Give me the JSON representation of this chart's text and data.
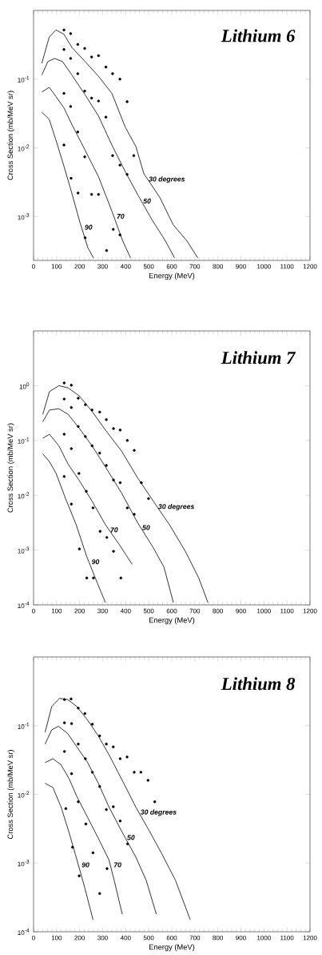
{
  "chart_data": [
    {
      "type": "scatter",
      "title": "Lithium 6",
      "xlabel": "Energy (MeV)",
      "ylabel": "Cross Section (mb/MeV sr)",
      "log": true,
      "legend": false,
      "xlim": [
        0,
        1200
      ],
      "xticks": [
        0,
        100,
        200,
        300,
        400,
        500,
        600,
        700,
        800,
        900,
        1000,
        1100,
        1200
      ],
      "ylim": [
        0.00023,
        1
      ],
      "yticks": [
        {
          "value": 0.1,
          "label": "10$^{-1}$"
        },
        {
          "value": 0.01,
          "label": "10$^{-2}$"
        },
        {
          "value": 0.001,
          "label": "10$^{-3}$"
        }
      ],
      "series": [
        {
          "name": "30 degrees",
          "type": "line",
          "color": "#000000",
          "x": [
            36,
            68,
            97,
            132,
            166,
            224,
            282,
            340,
            398,
            444,
            479,
            548,
            606,
            664,
            713
          ],
          "values": [
            0.17,
            0.41,
            0.52,
            0.45,
            0.29,
            0.18,
            0.11,
            0.062,
            0.02,
            0.0105,
            0.0042,
            0.0019,
            0.00076,
            0.00045,
            0.00025
          ]
        },
        {
          "name": "50",
          "type": "line",
          "color": "#000000",
          "x": [
            36,
            62,
            91,
            126,
            166,
            224,
            282,
            340,
            398,
            455,
            513,
            571,
            612
          ],
          "values": [
            0.115,
            0.18,
            0.2,
            0.18,
            0.115,
            0.059,
            0.029,
            0.011,
            0.0045,
            0.002,
            0.00091,
            0.00045,
            0.00025
          ]
        },
        {
          "name": "70",
          "type": "line",
          "color": "#000000",
          "x": [
            36,
            68,
            97,
            132,
            166,
            224,
            282,
            340,
            386,
            421
          ],
          "values": [
            0.065,
            0.076,
            0.056,
            0.038,
            0.022,
            0.0092,
            0.0038,
            0.0012,
            0.00045,
            0.00025
          ]
        },
        {
          "name": "90",
          "type": "line",
          "color": "#000000",
          "x": [
            36,
            68,
            97,
            132,
            166,
            201,
            236,
            260
          ],
          "values": [
            0.033,
            0.026,
            0.013,
            0.0054,
            0.0022,
            0.00083,
            0.00035,
            0.00025
          ]
        },
        {
          "marker": "circle",
          "color": "#000000",
          "x": [
            132,
            161,
            192,
            222,
            252,
            282,
            314,
            343,
            375,
            406
          ],
          "values": [
            0.52,
            0.46,
            0.32,
            0.28,
            0.21,
            0.22,
            0.15,
            0.12,
            0.1,
            0.047
          ]
        },
        {
          "marker": "circle",
          "color": "#000000",
          "x": [
            132,
            161,
            192,
            222,
            252,
            282,
            314,
            343,
            375,
            406,
            435
          ],
          "values": [
            0.27,
            0.2,
            0.12,
            0.067,
            0.053,
            0.048,
            0.028,
            0.0077,
            0.0056,
            0.0041,
            0.0077
          ]
        },
        {
          "marker": "circle",
          "color": "#000000",
          "x": [
            132,
            161,
            192,
            222,
            252,
            282,
            317,
            346,
            375
          ],
          "values": [
            0.062,
            0.04,
            0.017,
            0.0074,
            0.0021,
            0.0021,
            0.00032,
            0.00065,
            0.00054
          ]
        },
        {
          "marker": "circle",
          "color": "#000000",
          "x": [
            132,
            163,
            193,
            224
          ],
          "values": [
            0.011,
            0.0036,
            0.0022,
            0.00049
          ]
        }
      ]
    },
    {
      "type": "scatter",
      "title": "Lithium 7",
      "xlabel": "Energy (MeV)",
      "ylabel": "Cross Section (mb/MeV sr)",
      "log": true,
      "legend": false,
      "xlim": [
        0,
        1200
      ],
      "xticks": [
        0,
        100,
        200,
        300,
        400,
        500,
        600,
        700,
        800,
        900,
        1000,
        1100,
        1200
      ],
      "ylim": [
        0.0001,
        10
      ],
      "yticks": [
        {
          "value": 1,
          "label": "10$^{0}$"
        },
        {
          "value": 0.1,
          "label": "10$^{-1}$"
        },
        {
          "value": 0.01,
          "label": "10$^{-2}$"
        },
        {
          "value": 0.001,
          "label": "10$^{-3}$"
        },
        {
          "value": 0.0001,
          "label": "10$^{-4}$"
        }
      ],
      "series": [
        {
          "name": "30 degrees",
          "type": "line",
          "color": "#000000",
          "x": [
            40,
            69,
            110,
            150,
            197,
            254,
            312,
            382,
            451,
            520,
            590,
            659,
            717,
            757
          ],
          "values": [
            0.3,
            0.78,
            1.0,
            0.91,
            0.66,
            0.34,
            0.155,
            0.064,
            0.021,
            0.0078,
            0.0029,
            0.00095,
            0.00031,
            0.00011
          ]
        },
        {
          "name": "50",
          "type": "line",
          "color": "#000000",
          "x": [
            40,
            69,
            110,
            150,
            197,
            254,
            312,
            382,
            451,
            520,
            566,
            607
          ],
          "values": [
            0.22,
            0.36,
            0.38,
            0.3,
            0.17,
            0.08,
            0.033,
            0.011,
            0.0032,
            0.0011,
            0.00049,
            0.00011
          ]
        },
        {
          "name": "70",
          "type": "line",
          "color": "#000000",
          "x": [
            40,
            69,
            110,
            150,
            197,
            254,
            312,
            370,
            428
          ],
          "values": [
            0.11,
            0.13,
            0.08,
            0.037,
            0.019,
            0.0078,
            0.0029,
            0.0013,
            0.00055
          ]
        },
        {
          "name": "90",
          "type": "line",
          "color": "#000000",
          "x": [
            40,
            69,
            98,
            139,
            185,
            231,
            277,
            312
          ],
          "values": [
            0.057,
            0.041,
            0.025,
            0.0087,
            0.0029,
            0.00076,
            0.00025,
            0.00011
          ]
        },
        {
          "marker": "circle",
          "color": "#000000",
          "x": [
            133,
            164,
            194,
            225,
            254,
            287,
            316,
            347,
            376,
            407,
            437,
            468,
            499
          ],
          "values": [
            1.12,
            1.02,
            0.59,
            0.45,
            0.36,
            0.33,
            0.24,
            0.165,
            0.155,
            0.1,
            0.066,
            0.017,
            0.0087
          ]
        },
        {
          "marker": "circle",
          "color": "#000000",
          "x": [
            133,
            164,
            194,
            225,
            254,
            287,
            316,
            347,
            376,
            407,
            437
          ],
          "values": [
            0.57,
            0.4,
            0.18,
            0.118,
            0.08,
            0.059,
            0.035,
            0.019,
            0.017,
            0.0059,
            0.0045
          ]
        },
        {
          "marker": "circle",
          "color": "#000000",
          "x": [
            133,
            164,
            197,
            229,
            258,
            289,
            318,
            347,
            379
          ],
          "values": [
            0.13,
            0.071,
            0.025,
            0.0118,
            0.0059,
            0.0022,
            0.0017,
            0.00095,
            0.00031
          ]
        },
        {
          "marker": "circle",
          "color": "#000000",
          "x": [
            133,
            164,
            199,
            231,
            260
          ],
          "values": [
            0.022,
            0.0069,
            0.00105,
            0.00031,
            0.00031
          ]
        }
      ]
    },
    {
      "type": "scatter",
      "title": "Lithium 8",
      "xlabel": "Energy (MeV)",
      "ylabel": "Cross Section (mb/MeV sr)",
      "log": true,
      "legend": false,
      "xlim": [
        0,
        1200
      ],
      "xticks": [
        0,
        100,
        200,
        300,
        400,
        500,
        600,
        700,
        800,
        900,
        1000,
        1100,
        1200
      ],
      "ylim": [
        0.0001,
        1
      ],
      "yticks": [
        {
          "value": 0.1,
          "label": "10$^{-1}$"
        },
        {
          "value": 0.01,
          "label": "10$^{-2}$"
        },
        {
          "value": 0.001,
          "label": "10$^{-3}$"
        },
        {
          "value": 0.0001,
          "label": "10$^{-4}$"
        }
      ],
      "series": [
        {
          "name": "30 degrees",
          "type": "line",
          "color": "#000000",
          "x": [
            50,
            79,
            113,
            148,
            188,
            235,
            281,
            327,
            385,
            443,
            501,
            558,
            616,
            680
          ],
          "values": [
            0.08,
            0.19,
            0.25,
            0.24,
            0.19,
            0.12,
            0.071,
            0.038,
            0.016,
            0.0066,
            0.003,
            0.00134,
            0.00056,
            0.00015
          ]
        },
        {
          "name": "50",
          "type": "line",
          "color": "#000000",
          "x": [
            50,
            79,
            108,
            148,
            188,
            235,
            281,
            327,
            385,
            443,
            489,
            533
          ],
          "values": [
            0.054,
            0.087,
            0.098,
            0.077,
            0.049,
            0.029,
            0.0145,
            0.0066,
            0.0028,
            0.00124,
            0.00056,
            0.00018
          ]
        },
        {
          "name": "70",
          "type": "line",
          "color": "#000000",
          "x": [
            50,
            84,
            119,
            154,
            188,
            235,
            281,
            327,
            350,
            385
          ],
          "values": [
            0.029,
            0.033,
            0.027,
            0.017,
            0.0093,
            0.0046,
            0.0023,
            0.00112,
            0.00056,
            0.00018
          ]
        },
        {
          "name": "90",
          "type": "line",
          "color": "#000000",
          "x": [
            50,
            84,
            119,
            154,
            188,
            223,
            258
          ],
          "values": [
            0.0145,
            0.0126,
            0.0066,
            0.0028,
            0.00112,
            0.00043,
            0.00015
          ]
        },
        {
          "marker": "circle",
          "color": "#000000",
          "x": [
            134,
            163,
            194,
            223,
            255,
            287,
            316,
            346,
            376,
            406,
            437,
            466,
            497,
            526
          ],
          "values": [
            0.24,
            0.245,
            0.18,
            0.15,
            0.105,
            0.071,
            0.054,
            0.049,
            0.033,
            0.035,
            0.021,
            0.021,
            0.016,
            0.0078
          ]
        },
        {
          "marker": "circle",
          "color": "#000000",
          "x": [
            134,
            165,
            194,
            225,
            255,
            287,
            316,
            346,
            376,
            408
          ],
          "values": [
            0.11,
            0.107,
            0.054,
            0.033,
            0.021,
            0.013,
            0.006,
            0.0066,
            0.0041,
            0.0019
          ]
        },
        {
          "marker": "circle",
          "color": "#000000",
          "x": [
            134,
            165,
            194,
            227,
            258,
            319
          ],
          "values": [
            0.042,
            0.02,
            0.0078,
            0.0037,
            0.00141,
            0.00083
          ]
        },
        {
          "marker": "circle",
          "color": "#000000",
          "x": [
            140,
            169,
            198,
            287
          ],
          "values": [
            0.0062,
            0.0017,
            0.00065,
            0.00036
          ]
        }
      ]
    }
  ]
}
